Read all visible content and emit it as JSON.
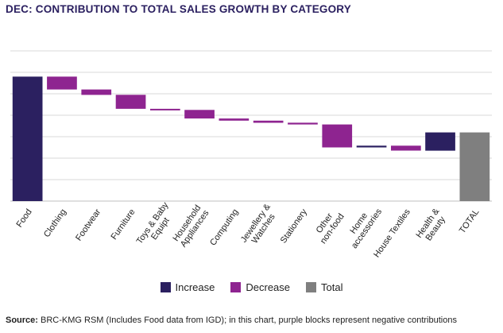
{
  "title": "DEC: CONTRIBUTION TO TOTAL SALES GROWTH BY CATEGORY",
  "source": {
    "label": "Source:",
    "text": " BRC-KMG RSM (Includes Food data from IGD); in this chart, purple blocks represent negative contributions"
  },
  "legend": [
    {
      "label": "Increase",
      "color": "#2b2060"
    },
    {
      "label": "Decrease",
      "color": "#8e2490"
    },
    {
      "label": "Total",
      "color": "#7f7f7f"
    }
  ],
  "colors": {
    "increase": "#2b2060",
    "decrease": "#8e2490",
    "total": "#7f7f7f",
    "grid": "#d9d9d9"
  },
  "chart_data": {
    "type": "waterfall",
    "title": "DEC: CONTRIBUTION TO TOTAL SALES GROWTH BY CATEGORY",
    "ylim": [
      0,
      7
    ],
    "gridlines": [
      1,
      2,
      3,
      4,
      5,
      6,
      7
    ],
    "y_tick_labels_shown": false,
    "categories": [
      {
        "label": [
          "Food"
        ],
        "kind": "increase",
        "start": 0,
        "end": 5.8
      },
      {
        "label": [
          "Clothing"
        ],
        "kind": "decrease",
        "start": 5.8,
        "end": 5.2
      },
      {
        "label": [
          "Footwear"
        ],
        "kind": "decrease",
        "start": 5.2,
        "end": 4.95
      },
      {
        "label": [
          "Furniture"
        ],
        "kind": "decrease",
        "start": 4.95,
        "end": 4.3
      },
      {
        "label": [
          "Toys & Baby",
          "Equipt"
        ],
        "kind": "decrease",
        "start": 4.3,
        "end": 4.25
      },
      {
        "label": [
          "Household",
          "Appliances"
        ],
        "kind": "decrease",
        "start": 4.25,
        "end": 3.85
      },
      {
        "label": [
          "Computing"
        ],
        "kind": "decrease",
        "start": 3.85,
        "end": 3.75
      },
      {
        "label": [
          "Jewellery &",
          "Watches"
        ],
        "kind": "decrease",
        "start": 3.75,
        "end": 3.65
      },
      {
        "label": [
          "Stationery"
        ],
        "kind": "decrease",
        "start": 3.65,
        "end": 3.57
      },
      {
        "label": [
          "Other",
          "non-food"
        ],
        "kind": "decrease",
        "start": 3.57,
        "end": 2.5
      },
      {
        "label": [
          "Home",
          "accessories"
        ],
        "kind": "increase",
        "start": 2.5,
        "end": 2.58
      },
      {
        "label": [
          "House Textiles"
        ],
        "kind": "decrease",
        "start": 2.58,
        "end": 2.35
      },
      {
        "label": [
          "Health &",
          "Beauty"
        ],
        "kind": "increase",
        "start": 2.35,
        "end": 3.2
      },
      {
        "label": [
          "TOTAL"
        ],
        "kind": "total",
        "start": 0,
        "end": 3.2
      }
    ]
  }
}
